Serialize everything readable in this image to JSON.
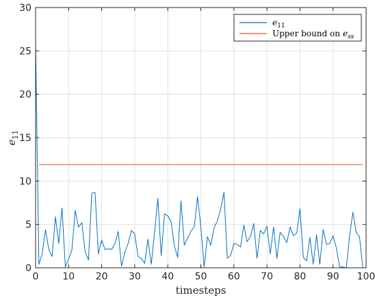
{
  "chart_data": {
    "type": "line",
    "xlabel": "timesteps",
    "ylabel_base": "e",
    "ylabel_sub": "11",
    "xlim": [
      0,
      100
    ],
    "ylim": [
      0,
      30
    ],
    "xticks": [
      0,
      10,
      20,
      30,
      40,
      50,
      60,
      70,
      80,
      90,
      100
    ],
    "yticks": [
      0,
      5,
      10,
      15,
      20,
      25,
      30
    ],
    "grid": true,
    "legend_position": "top-right",
    "colors": {
      "series_1": "#0072BD",
      "series_2": "#D95319",
      "axes": "#262626",
      "grid": "#dfdfdf"
    },
    "series": [
      {
        "name_base": "e",
        "name_sub": "11",
        "color": "#0072BD",
        "x": [
          0,
          1,
          2,
          3,
          4,
          5,
          6,
          7,
          8,
          9,
          10,
          11,
          12,
          13,
          14,
          15,
          16,
          17,
          18,
          19,
          20,
          21,
          22,
          23,
          24,
          25,
          26,
          27,
          28,
          29,
          30,
          31,
          32,
          33,
          34,
          35,
          36,
          37,
          38,
          39,
          40,
          41,
          42,
          43,
          44,
          45,
          46,
          47,
          48,
          49,
          50,
          51,
          52,
          53,
          54,
          55,
          56,
          57,
          58,
          59,
          60,
          61,
          62,
          63,
          64,
          65,
          66,
          67,
          68,
          69,
          70,
          71,
          72,
          73,
          74,
          75,
          76,
          77,
          78,
          79,
          80,
          81,
          82,
          83,
          84,
          85,
          86,
          87,
          88,
          89,
          90,
          91,
          92,
          93,
          94,
          95,
          96,
          97,
          98,
          99
        ],
        "values": [
          26.0,
          0.4,
          1.6,
          4.4,
          2.1,
          1.3,
          5.9,
          2.8,
          6.9,
          0.1,
          1.0,
          2.1,
          6.6,
          4.7,
          5.2,
          1.8,
          0.9,
          8.6,
          8.7,
          1.6,
          3.2,
          2.1,
          2.2,
          2.1,
          2.8,
          4.2,
          0.2,
          1.8,
          2.8,
          4.3,
          3.9,
          1.3,
          1.1,
          0.5,
          3.3,
          0.4,
          4.1,
          8.0,
          1.4,
          6.2,
          6.0,
          5.3,
          2.5,
          1.2,
          7.7,
          2.6,
          3.4,
          4.2,
          4.7,
          8.2,
          4.7,
          0.1,
          3.6,
          2.6,
          4.6,
          5.4,
          6.8,
          8.7,
          1.1,
          1.4,
          2.8,
          2.7,
          2.4,
          4.9,
          3.0,
          3.6,
          5.1,
          1.1,
          4.3,
          3.9,
          4.8,
          1.6,
          4.7,
          1.1,
          4.1,
          3.6,
          2.9,
          4.7,
          3.7,
          4.0,
          6.8,
          1.2,
          0.8,
          3.5,
          0.4,
          3.8,
          0.4,
          4.4,
          2.7,
          2.8,
          3.7,
          2.3,
          0.1,
          0.1,
          0.0,
          3.7,
          6.4,
          4.1,
          3.6,
          0.0
        ]
      },
      {
        "name": "Upper bound on",
        "name_base": "e",
        "name_sub": "ss",
        "color": "#D95319",
        "x": [
          1,
          99
        ],
        "values": [
          11.9,
          11.9
        ]
      }
    ]
  }
}
